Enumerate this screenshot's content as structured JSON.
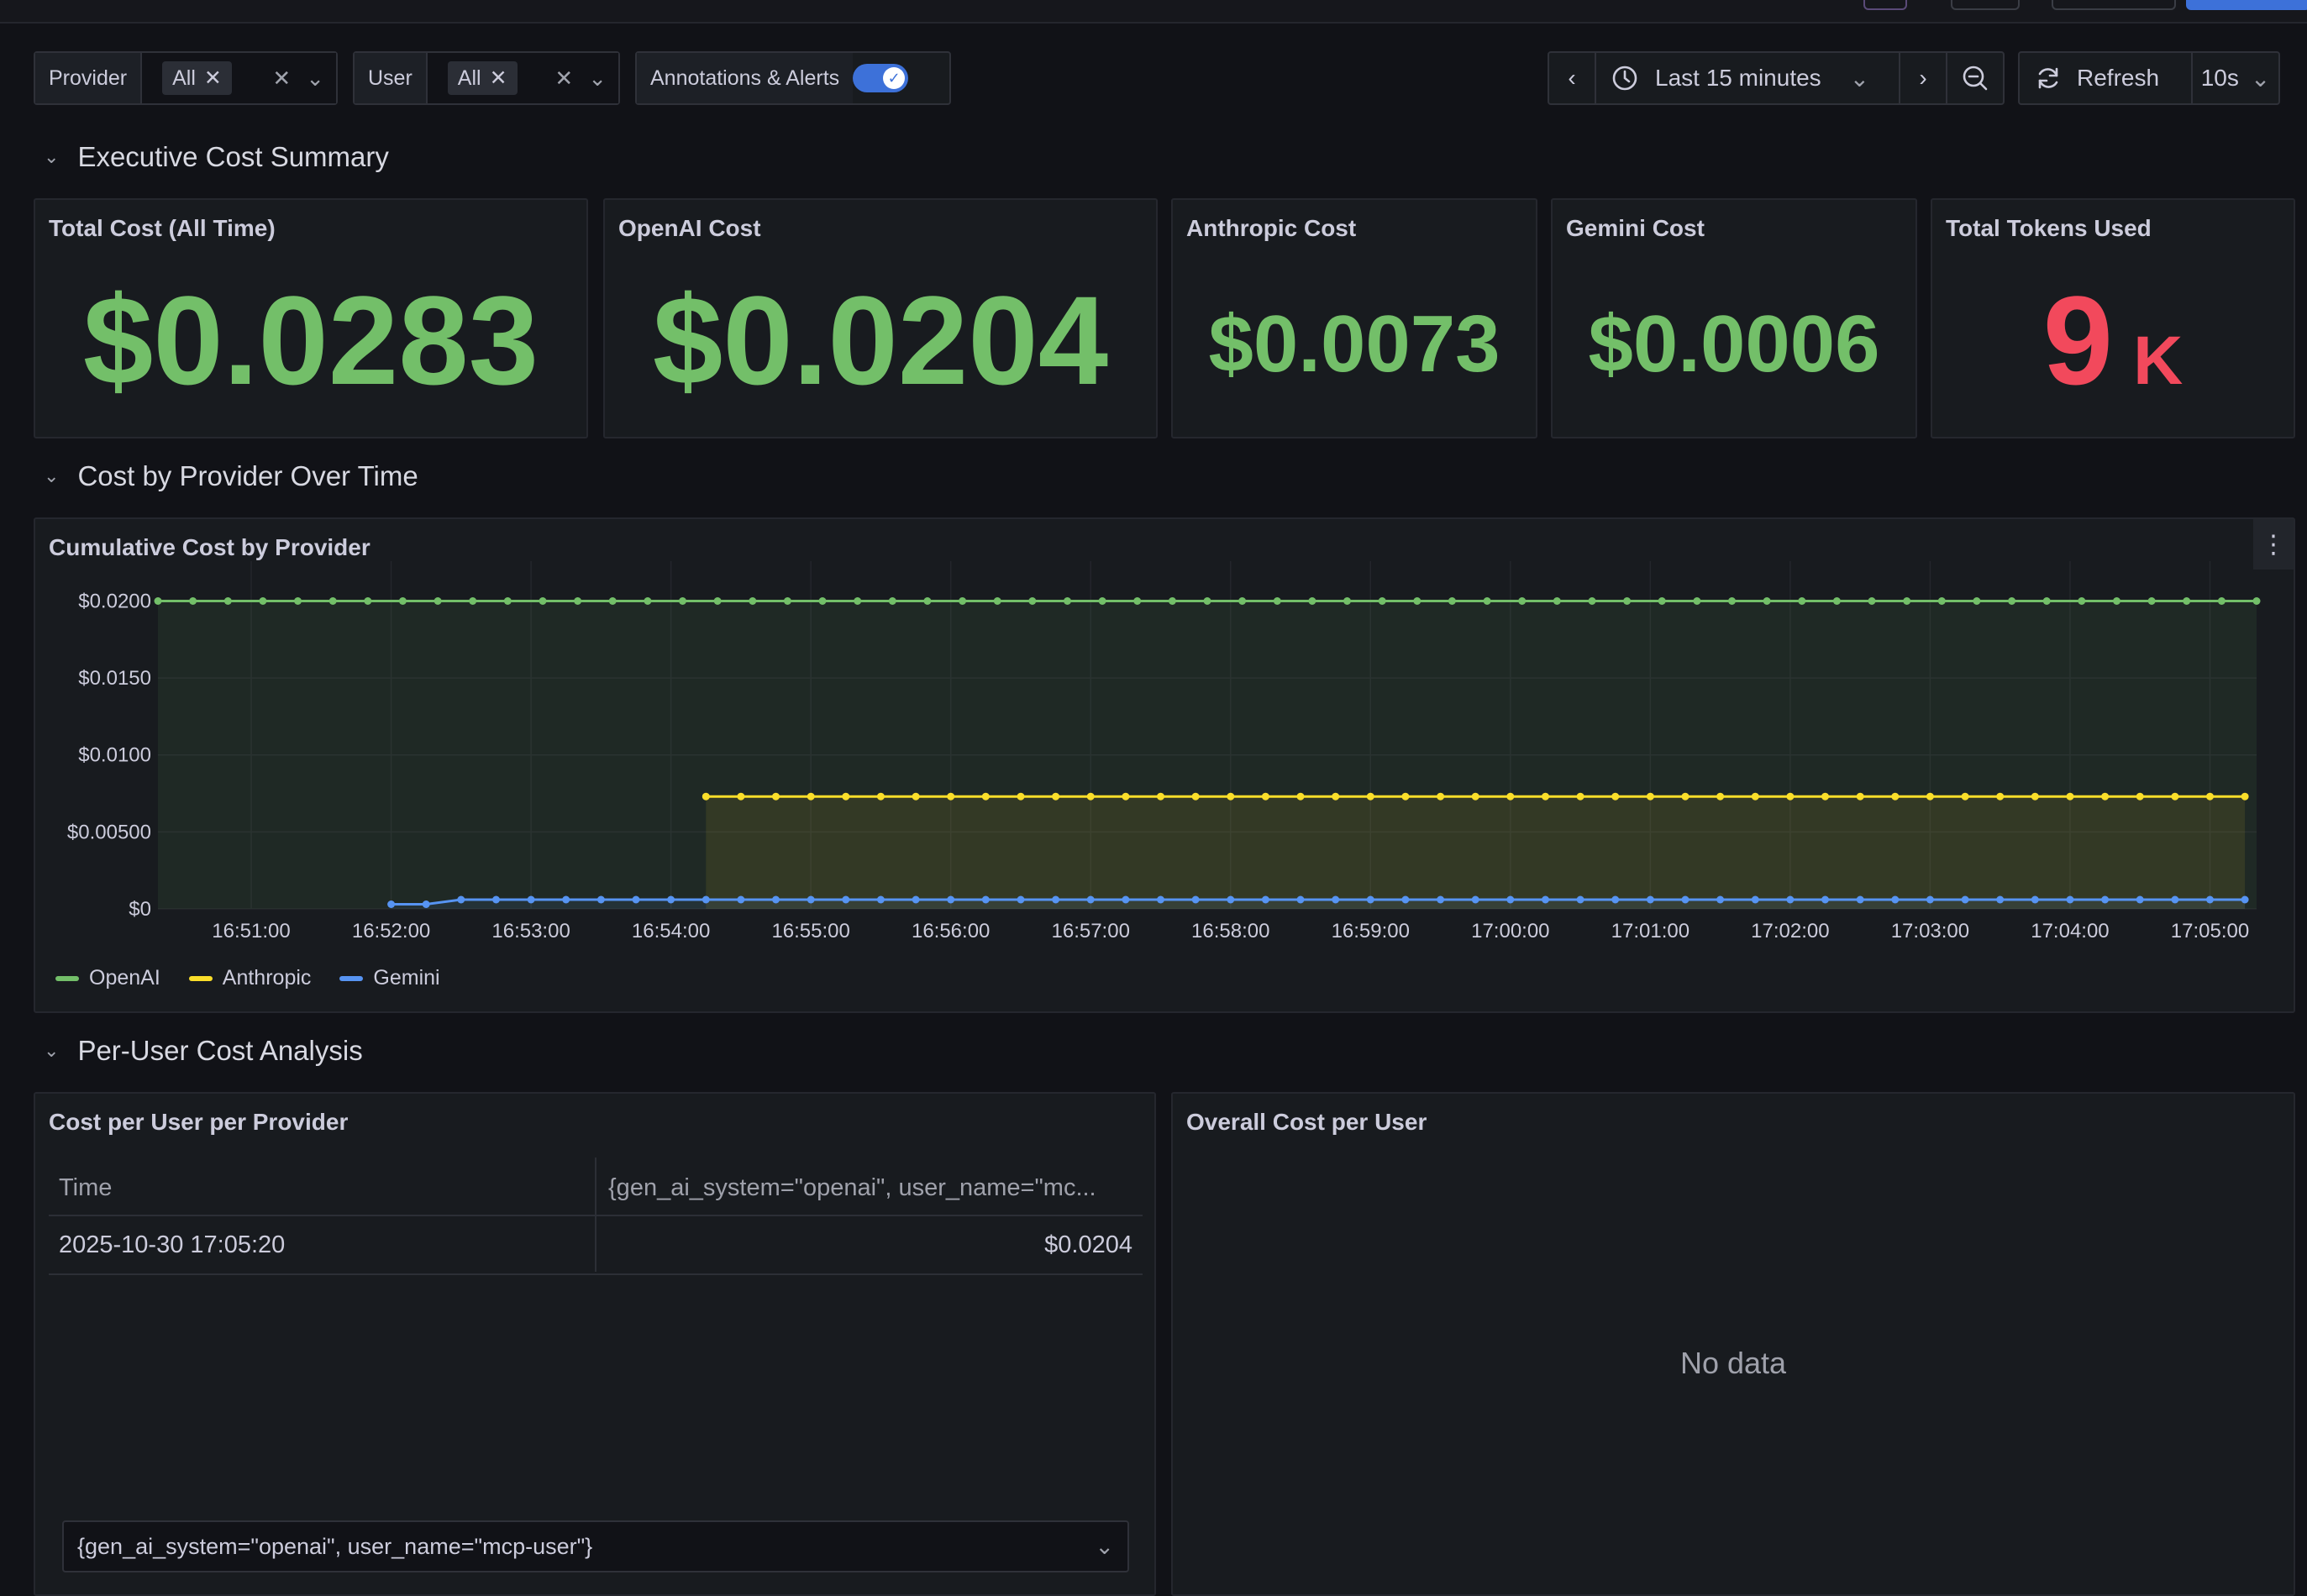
{
  "variables": [
    {
      "label": "Provider",
      "value": "All"
    },
    {
      "label": "User",
      "value": "All"
    }
  ],
  "annotations_label": "Annotations & Alerts",
  "time_picker": {
    "label": "Last 15 minutes"
  },
  "refresh": {
    "label": "Refresh",
    "interval": "10s"
  },
  "rows": {
    "executive": "Executive Cost Summary",
    "provider_time": "Cost by Provider Over Time",
    "per_user": "Per-User Cost Analysis"
  },
  "stats": [
    {
      "title": "Total Cost (All Time)",
      "value": "$0.0283"
    },
    {
      "title": "OpenAI Cost",
      "value": "$0.0204"
    },
    {
      "title": "Anthropic Cost",
      "value": "$0.0073"
    },
    {
      "title": "Gemini Cost",
      "value": "$0.0006"
    },
    {
      "title": "Total Tokens Used",
      "value": "9",
      "unit": "K"
    }
  ],
  "colors": {
    "green": "#73bf69",
    "yellow": "#fade2a",
    "blue": "#5794f2",
    "red": "#f2495c"
  },
  "chart_data": {
    "type": "line",
    "title": "Cumulative Cost by Provider",
    "y_ticks": [
      "$0",
      "$0.00500",
      "$0.0100",
      "$0.0150",
      "$0.0200"
    ],
    "ylim": [
      0,
      0.0215
    ],
    "x_ticks": [
      "16:51:00",
      "16:52:00",
      "16:53:00",
      "16:54:00",
      "16:55:00",
      "16:56:00",
      "16:57:00",
      "16:58:00",
      "16:59:00",
      "17:00:00",
      "17:01:00",
      "17:02:00",
      "17:03:00",
      "17:04:00",
      "17:05:00"
    ],
    "x_range": [
      "16:50:20",
      "17:05:20"
    ],
    "interval_seconds": 15,
    "grid": true,
    "legend_placement": "bottom-left",
    "series": [
      {
        "name": "OpenAI",
        "color": "#73bf69",
        "start": "16:50:20",
        "values": [
          {
            "from": "16:50:20",
            "value": 0.02
          }
        ]
      },
      {
        "name": "Anthropic",
        "color": "#fade2a",
        "start": "16:54:15",
        "values": [
          {
            "from": "16:54:15",
            "value": 0.0073
          }
        ]
      },
      {
        "name": "Gemini",
        "color": "#5794f2",
        "start": "16:52:00",
        "values": [
          {
            "from": "16:52:00",
            "value": 0.0003
          },
          {
            "from": "16:52:30",
            "value": 0.0006
          }
        ]
      }
    ]
  },
  "table": {
    "title": "Cost per User per Provider",
    "columns": [
      "Time",
      "{gen_ai_system=\"openai\", user_name=\"mc..."
    ],
    "rows": [
      [
        "2025-10-30 17:05:20",
        "$0.0204"
      ]
    ],
    "series_select": "{gen_ai_system=\"openai\", user_name=\"mcp-user\"}"
  },
  "overall": {
    "title": "Overall Cost per User",
    "empty": "No data"
  }
}
